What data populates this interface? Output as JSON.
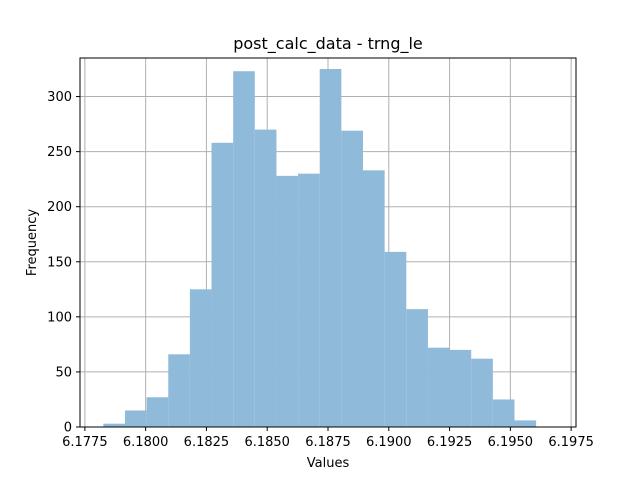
{
  "chart_data": {
    "type": "bar",
    "title": "post_calc_data - trng_le",
    "xlabel": "Values",
    "ylabel": "Frequency",
    "xlim": [
      6.1773,
      6.1977
    ],
    "ylim": [
      0,
      335
    ],
    "grid": true,
    "bar_color": "#8fbad9",
    "x_ticks": [
      6.1775,
      6.18,
      6.1825,
      6.185,
      6.1875,
      6.19,
      6.1925,
      6.195,
      6.1975
    ],
    "x_tick_labels": [
      "6.1775",
      "6.1800",
      "6.1825",
      "6.1850",
      "6.1875",
      "6.1900",
      "6.1925",
      "6.1950",
      "6.1975"
    ],
    "y_ticks": [
      0,
      50,
      100,
      150,
      200,
      250,
      300
    ],
    "y_tick_labels": [
      "0",
      "50",
      "100",
      "150",
      "200",
      "250",
      "300"
    ],
    "bin_edges": [
      6.17826,
      6.17915,
      6.18004,
      6.18093,
      6.18182,
      6.18271,
      6.1836,
      6.18449,
      6.18538,
      6.18627,
      6.18716,
      6.18805,
      6.18894,
      6.18983,
      6.19072,
      6.19161,
      6.1925,
      6.19339,
      6.19428,
      6.19517,
      6.19606,
      6.19695
    ],
    "values": [
      3,
      15,
      27,
      66,
      125,
      258,
      323,
      270,
      228,
      230,
      325,
      269,
      233,
      159,
      107,
      72,
      70,
      62,
      25,
      6,
      0
    ]
  }
}
